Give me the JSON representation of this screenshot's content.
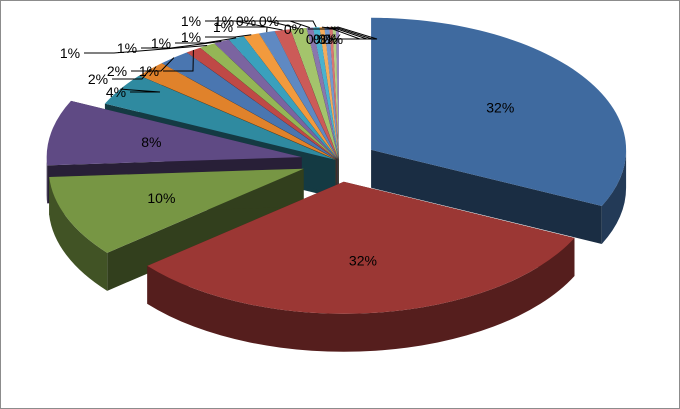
{
  "chart_data": {
    "type": "pie",
    "three_d": true,
    "exploded": true,
    "title": "",
    "legend": "none",
    "slices": [
      {
        "value": 32,
        "label": "32%",
        "color": "#3f6a9f"
      },
      {
        "value": 32,
        "label": "32%",
        "color": "#9b3734"
      },
      {
        "value": 10,
        "label": "10%",
        "color": "#779644"
      },
      {
        "value": 8,
        "label": "8%",
        "color": "#5f4a84"
      },
      {
        "value": 4,
        "label": "4%",
        "color": "#2f8aa0"
      },
      {
        "value": 2,
        "label": "2%",
        "color": "#e0822b"
      },
      {
        "value": 2,
        "label": "2%",
        "color": "#4a76b0"
      },
      {
        "value": 1,
        "label": "1%",
        "color": "#bf4946"
      },
      {
        "value": 1,
        "label": "1%",
        "color": "#94b656"
      },
      {
        "value": 1,
        "label": "1%",
        "color": "#7b64a0"
      },
      {
        "value": 1,
        "label": "1%",
        "color": "#3aa0bd"
      },
      {
        "value": 1,
        "label": "1%",
        "color": "#f29a3d"
      },
      {
        "value": 1,
        "label": "1%",
        "color": "#5f89c2"
      },
      {
        "value": 1,
        "label": "1%",
        "color": "#cc5b58"
      },
      {
        "value": 1,
        "label": "1%",
        "color": "#a4c46c"
      },
      {
        "value": 0.4,
        "label": "0%",
        "color": "#8a76ad"
      },
      {
        "value": 0.4,
        "label": "0%",
        "color": "#4bb2ce"
      },
      {
        "value": 0.3,
        "label": "0%",
        "color": "#f4ac5c"
      },
      {
        "value": 0.3,
        "label": "0%",
        "color": "#7399cf"
      },
      {
        "value": 0.2,
        "label": "0%",
        "color": "#d77573"
      },
      {
        "value": 0.2,
        "label": "0%",
        "color": "#b3cf84"
      },
      {
        "value": 0.2,
        "label": "0%",
        "color": "#9a88bb"
      }
    ]
  }
}
